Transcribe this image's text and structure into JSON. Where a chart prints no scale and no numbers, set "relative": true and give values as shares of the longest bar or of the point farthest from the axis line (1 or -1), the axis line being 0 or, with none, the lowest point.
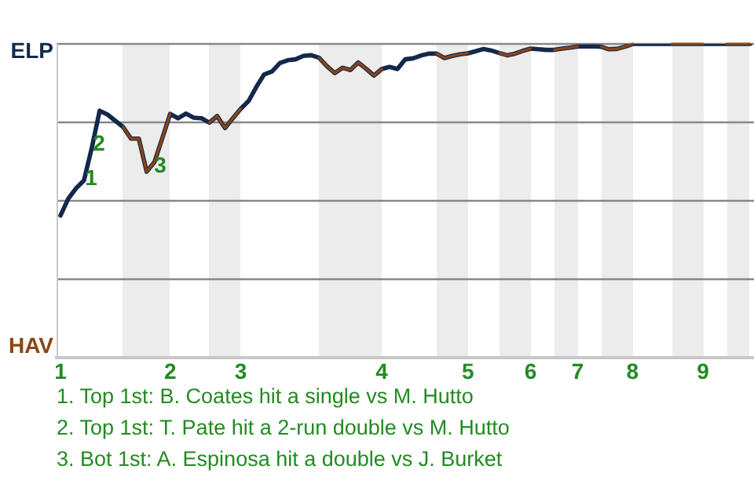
{
  "chart_data": {
    "type": "line",
    "relative": true,
    "categories": [
      "1",
      null,
      null,
      null,
      null,
      null,
      null,
      null,
      null,
      null,
      null,
      null,
      null,
      null,
      "2",
      null,
      null,
      null,
      null,
      null,
      null,
      null,
      null,
      "3",
      null,
      null,
      null,
      null,
      null,
      null,
      null,
      null,
      null,
      null,
      null,
      null,
      null,
      null,
      null,
      null,
      null,
      "4",
      null,
      null,
      null,
      null,
      null,
      null,
      null,
      null,
      null,
      null,
      "5",
      null,
      null,
      null,
      null,
      null,
      null,
      null,
      "6",
      null,
      null,
      null,
      null,
      null,
      "7",
      null,
      null,
      null,
      null,
      null,
      null,
      "8",
      null,
      null,
      null,
      null,
      null,
      null,
      null,
      null,
      "9",
      null,
      null,
      null,
      null,
      null,
      null
    ],
    "series": [
      {
        "color": "#14284b",
        "values": [
          0.453,
          0.507,
          0.54,
          0.565,
          0.669,
          0.787,
          0.775,
          0.755,
          0.735,
          0.698,
          0.698,
          0.593,
          0.624,
          0.7,
          0.777,
          0.763,
          0.778,
          0.765,
          0.763,
          0.749,
          0.77,
          0.732,
          0.763,
          0.793,
          0.818,
          0.863,
          0.903,
          0.912,
          0.939,
          0.948,
          0.951,
          0.962,
          0.964,
          0.956,
          0.929,
          0.907,
          0.924,
          0.917,
          0.941,
          0.921,
          0.899,
          0.92,
          0.927,
          0.92,
          0.951,
          0.954,
          0.963,
          0.969,
          0.969,
          0.955,
          0.962,
          0.967,
          0.97,
          0.977,
          0.984,
          0.979,
          0.971,
          0.964,
          0.969,
          0.978,
          0.985,
          0.983,
          0.981,
          0.981,
          0.985,
          0.988,
          0.992,
          0.992,
          0.992,
          0.991,
          0.983,
          0.984,
          0.991,
          1,
          1,
          1,
          1,
          1,
          1,
          1,
          1,
          1,
          1,
          1,
          1,
          1,
          1,
          1,
          1
        ],
        "colors": [
          "#14284b",
          "#14284b",
          "#14284b",
          "#14284b",
          "#14284b",
          "#14284b",
          "#14284b",
          "#14284b",
          "#8b4513",
          "#8b4513",
          "#8b4513",
          "#8b4513",
          "#8b4513",
          "#8b4513",
          "#14284b",
          "#14284b",
          "#14284b",
          "#14284b",
          "#14284b",
          "#8b4513",
          "#8b4513",
          "#8b4513",
          "#8b4513",
          "#14284b",
          "#14284b",
          "#14284b",
          "#14284b",
          "#14284b",
          "#14284b",
          "#14284b",
          "#14284b",
          "#14284b",
          "#14284b",
          "#8b4513",
          "#8b4513",
          "#8b4513",
          "#8b4513",
          "#8b4513",
          "#8b4513",
          "#8b4513",
          "#8b4513",
          "#14284b",
          "#14284b",
          "#14284b",
          "#14284b",
          "#14284b",
          "#14284b",
          "#14284b",
          "#8b4513",
          "#8b4513",
          "#8b4513",
          "#8b4513",
          "#14284b",
          "#14284b",
          "#14284b",
          "#14284b",
          "#8b4513",
          "#8b4513",
          "#8b4513",
          "#8b4513",
          "#14284b",
          "#14284b",
          "#14284b",
          "#8b4513",
          "#8b4513",
          "#8b4513",
          "#14284b",
          "#14284b",
          "#14284b",
          "#8b4513",
          "#8b4513",
          "#8b4513",
          "#8b4513",
          "#14284b",
          "#14284b",
          "#14284b",
          "#14284b",
          "#14284b",
          "#8b4513",
          "#8b4513",
          "#8b4513",
          "#8b4513",
          "#14284b",
          "#14284b",
          "#14284b",
          "#8b4513",
          "#8b4513",
          "#8b4513",
          "#8b4513"
        ]
      }
    ],
    "annotations": [
      "ELP",
      "HAV",
      "1",
      "2",
      "3",
      "1. Top 1st: B. Coates hit a single vs M. Hutto",
      "2. Top 1st: T. Pate hit a 2-run double vs M. Hutto",
      "3. Bot 1st: A. Espinosa hit a double vs J. Burket"
    ],
    "grid": "y",
    "legend": false,
    "marker": "none",
    "line_style": "solid"
  }
}
